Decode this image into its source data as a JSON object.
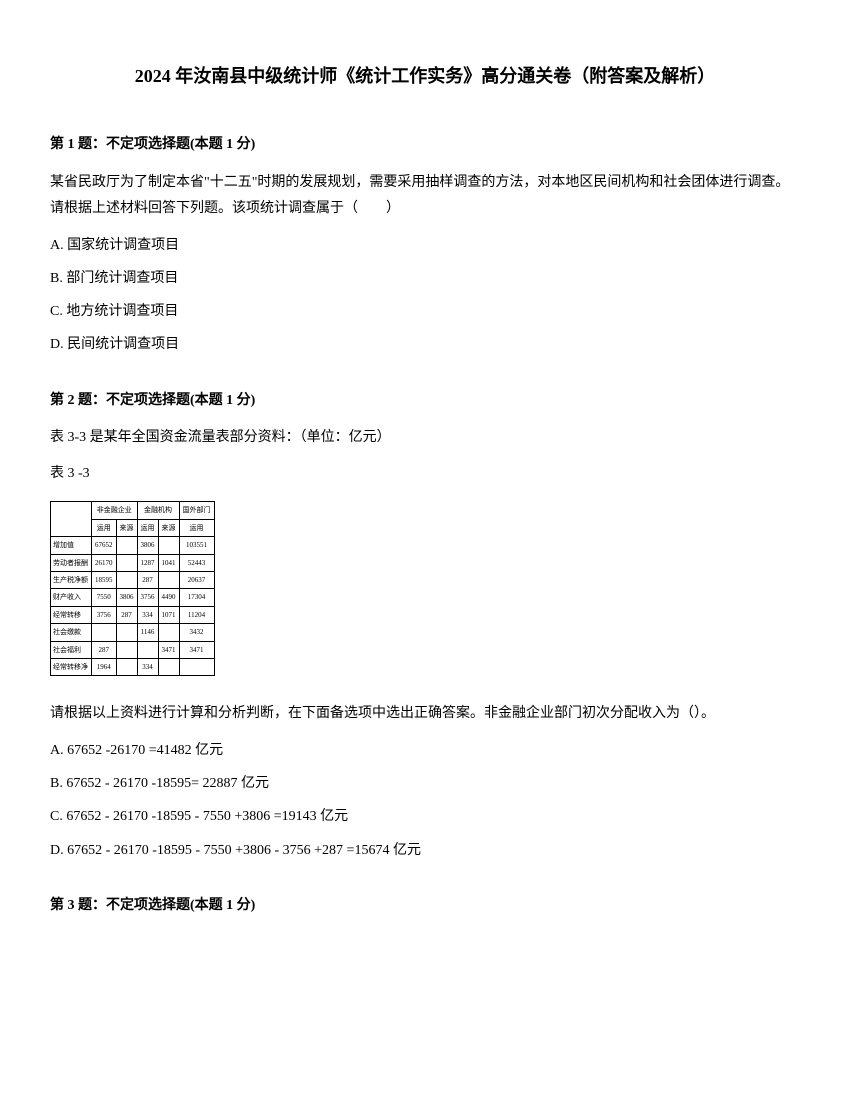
{
  "title": "2024 年汝南县中级统计师《统计工作实务》高分通关卷（附答案及解析）",
  "q1": {
    "header": "第 1 题：不定项选择题(本题 1 分)",
    "text": "某省民政厅为了制定本省\"十二五\"时期的发展规划，需要采用抽样调查的方法，对本地区民间机构和社会团体进行调查。 请根据上述材料回答下列题。该项统计调查属于（　　）",
    "optA": "A. 国家统计调查项目",
    "optB": "B. 部门统计调查项目",
    "optC": "C. 地方统计调查项目",
    "optD": "D. 民间统计调查项目"
  },
  "q2": {
    "header": "第 2 题：不定项选择题(本题 1 分)",
    "text1": "表 3-3 是某年全国资金流量表部分资料：（单位：亿元）",
    "text2": "表 3 -3",
    "prompt": "请根据以上资料进行计算和分析判断，在下面备选项中选出正确答案。非金融企业部门初次分配收入为（）。",
    "optA": "A. 67652 -26170 =41482 亿元",
    "optB": "B. 67652 - 26170 -18595= 22887 亿元",
    "optC": "C. 67652 - 26170 -18595 - 7550 +3806 =19143 亿元",
    "optD": "D. 67652 - 26170 -18595 - 7550 +3806 - 3756 +287 =15674 亿元"
  },
  "q3": {
    "header": "第 3 题：不定项选择题(本题 1 分)"
  },
  "table": {
    "header_groups": [
      "非金融企业",
      "金融机构",
      "国外部门"
    ],
    "sub_headers": [
      "运用",
      "来源",
      "运用",
      "来源",
      "运用"
    ],
    "rows": [
      {
        "label": "增加值",
        "cells": [
          "67652",
          "",
          "3806",
          "",
          "103551"
        ]
      },
      {
        "label": "劳动者报酬",
        "cells": [
          "26170",
          "",
          "1287",
          "1041",
          "52443"
        ]
      },
      {
        "label": "生产税净额",
        "cells": [
          "18595",
          "",
          "287",
          "",
          "20637"
        ]
      },
      {
        "label": "财产收入",
        "cells": [
          "7550",
          "3806",
          "3756",
          "4490",
          "17304"
        ]
      },
      {
        "label": "经常转移",
        "cells": [
          "3756",
          "287",
          "334",
          "1071",
          "11204"
        ]
      },
      {
        "label": "社会缴款",
        "cells": [
          "",
          "",
          "1146",
          "",
          "3432"
        ]
      },
      {
        "label": "社会福利",
        "cells": [
          "287",
          "",
          "",
          "3471",
          "3471"
        ]
      },
      {
        "label": "经常转移净",
        "cells": [
          "1964",
          "",
          "334",
          "",
          ""
        ]
      }
    ]
  }
}
